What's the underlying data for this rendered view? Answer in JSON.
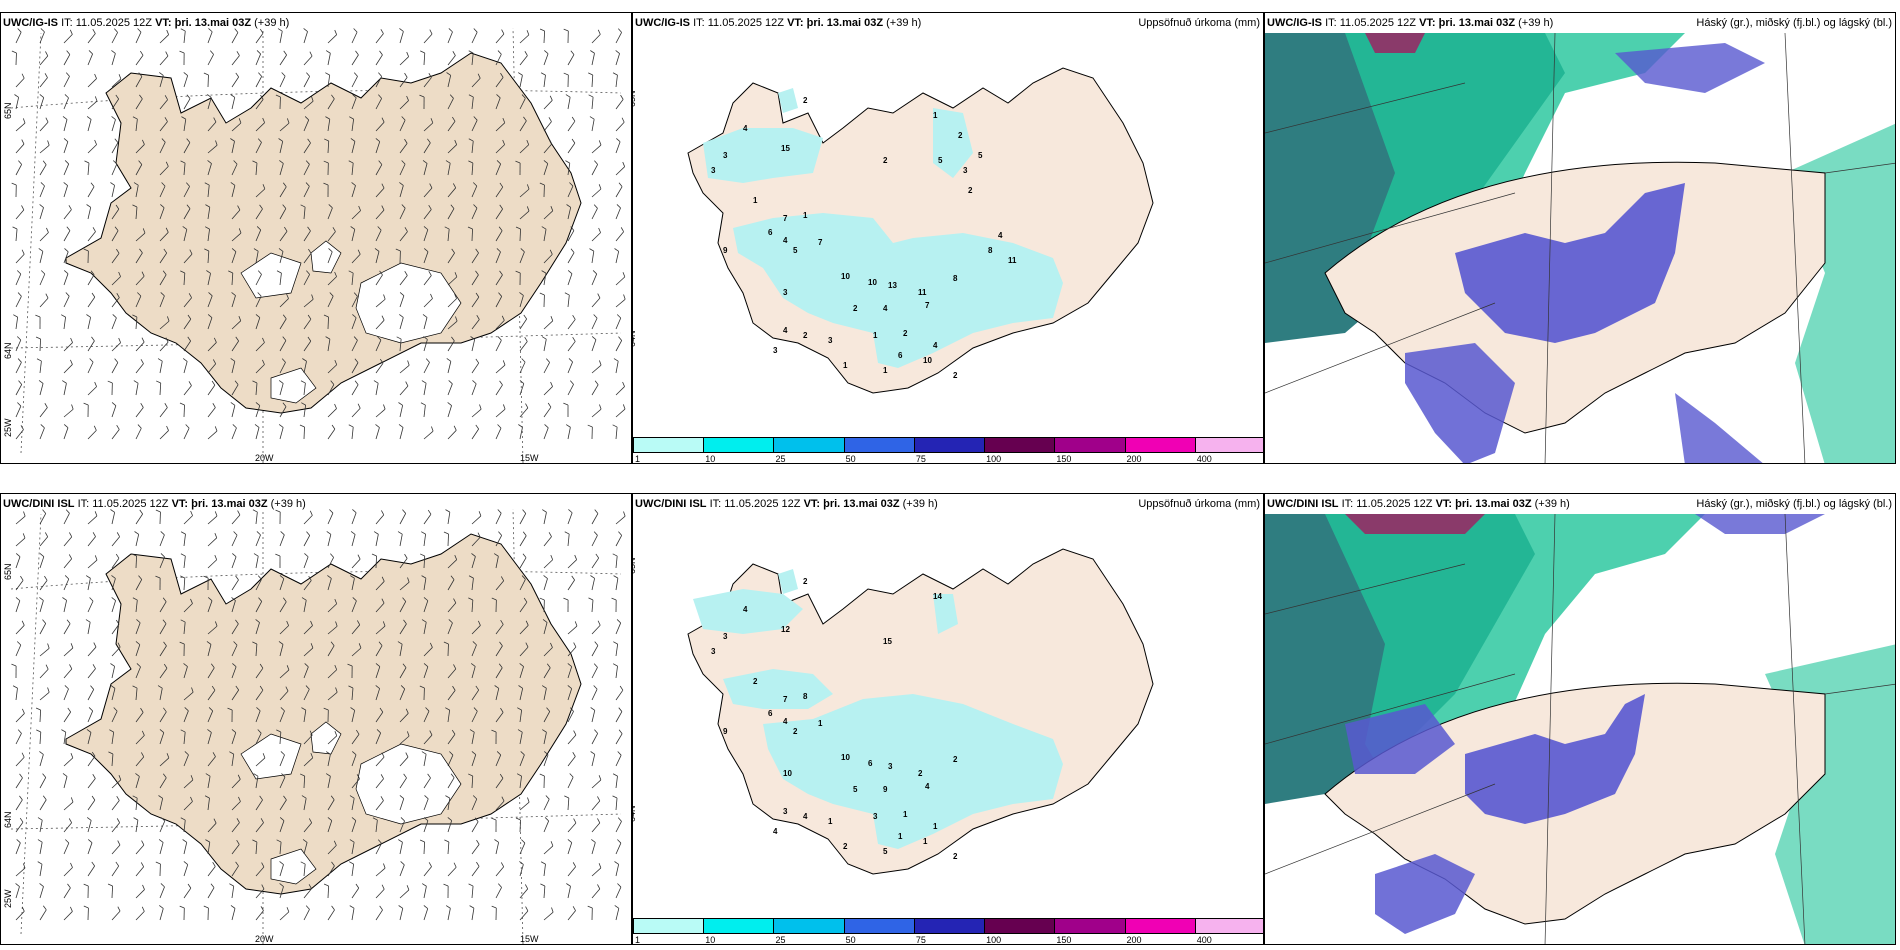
{
  "rows": [
    {
      "model": "UWC/IG-IS",
      "it_label": "IT:",
      "it_value": "11.05.2025 12Z",
      "vt_label": "VT:",
      "vt_value": "þri. 13.mai 03Z",
      "lead": "(+39 h)",
      "precip_values": [
        "2",
        "4",
        "15",
        "3",
        "3",
        "1",
        "7",
        "9",
        "1",
        "6",
        "4",
        "5",
        "7",
        "3",
        "10",
        "10",
        "13",
        "11",
        "8",
        "7",
        "4",
        "2",
        "1",
        "2",
        "4",
        "6",
        "10",
        "2",
        "1",
        "1",
        "3",
        "2",
        "4",
        "3",
        "2",
        "1",
        "2",
        "5",
        "5",
        "3",
        "2",
        "4",
        "8",
        "11"
      ],
      "lat_labels": [
        "65N",
        "64N",
        "25W"
      ],
      "lon_labels": [
        "20W",
        "15W"
      ]
    },
    {
      "model": "UWC/DINI ISL",
      "it_label": "IT:",
      "it_value": "11.05.2025 12Z",
      "vt_label": "VT:",
      "vt_value": "þri. 13.mai 03Z",
      "lead": "(+39 h)",
      "precip_values": [
        "2",
        "4",
        "12",
        "3",
        "3",
        "2",
        "7",
        "9",
        "8",
        "6",
        "4",
        "2",
        "1",
        "10",
        "10",
        "6",
        "3",
        "2",
        "2",
        "4",
        "9",
        "5",
        "3",
        "1",
        "1",
        "1",
        "1",
        "2",
        "5",
        "2",
        "1",
        "4",
        "3",
        "4",
        "15",
        "14"
      ],
      "lat_labels": [
        "65N",
        "64N",
        "25W"
      ],
      "lon_labels": [
        "20W",
        "15W"
      ]
    }
  ],
  "precip_title": "Uppsöfnuð úrkoma (mm)",
  "cloud_title": "Háský (gr.), miðský (fj.bl.) og lágský (bl.)",
  "colorbar": {
    "ticks": [
      "1",
      "10",
      "25",
      "50",
      "75",
      "100",
      "150",
      "200",
      "400"
    ],
    "colors": [
      "#b9fbf6",
      "#00eeee",
      "#00c0ec",
      "#2f64e6",
      "#2424b4",
      "#660050",
      "#a0008a",
      "#f000b4",
      "#f6b2ee"
    ]
  },
  "colors": {
    "land": "#eddcc6",
    "land_light": "#f7e8dc",
    "precip": "#b7f1f1",
    "cloud_high": "#2f7d80",
    "cloud_mid": "#20c49a",
    "cloud_low": "#5858d0"
  }
}
